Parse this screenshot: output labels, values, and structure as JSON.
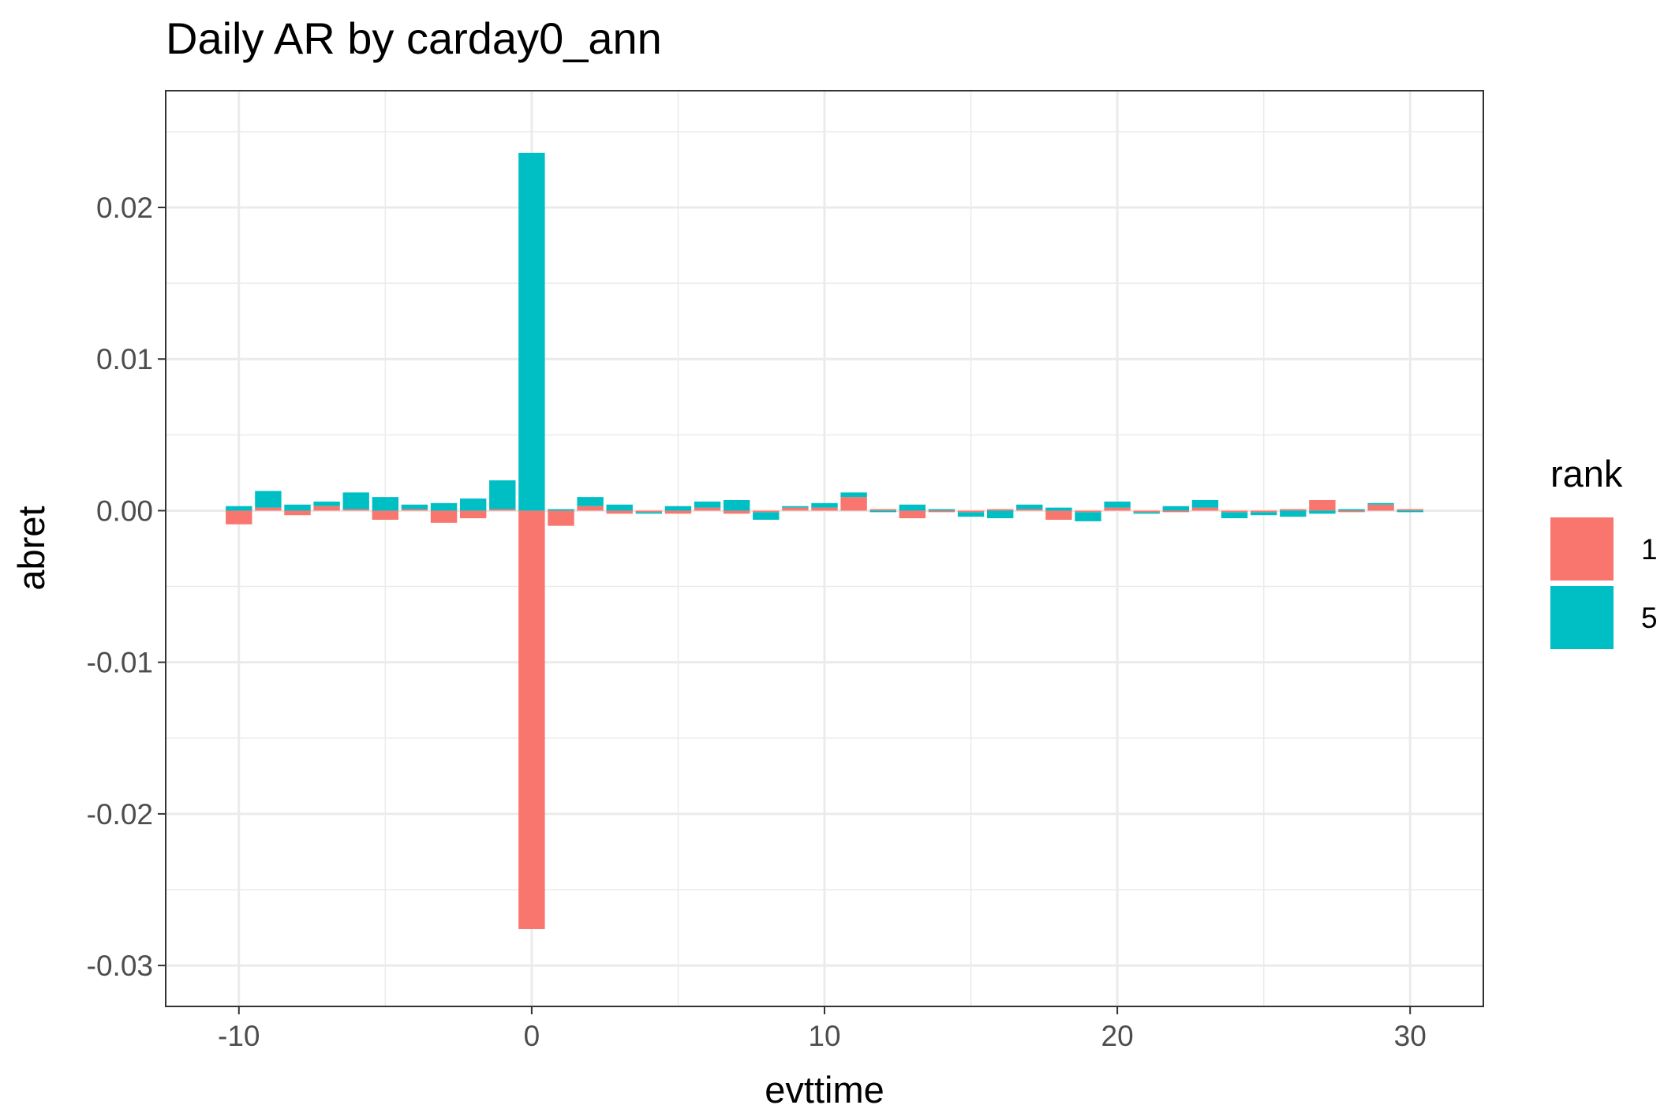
{
  "chart_data": {
    "type": "bar",
    "position": "stack",
    "title": "Daily AR by carday0_ann",
    "xlabel": "evttime",
    "ylabel": "abret",
    "xlim": [
      -12.5,
      32.5
    ],
    "ylim": [
      -0.0327,
      0.0277
    ],
    "x_ticks": [
      -10,
      0,
      10,
      20,
      30
    ],
    "x_tick_labels": [
      "-10",
      "0",
      "10",
      "20",
      "30"
    ],
    "y_ticks": [
      -0.03,
      -0.02,
      -0.01,
      0.0,
      0.01,
      0.02
    ],
    "y_tick_labels": [
      "-0.03",
      "-0.02",
      "-0.01",
      "0.00",
      "0.01",
      "0.02"
    ],
    "grid": true,
    "legend": {
      "title": "rank",
      "position": "right"
    },
    "x": [
      -10,
      -9,
      -8,
      -7,
      -6,
      -5,
      -4,
      -3,
      -2,
      -1,
      0,
      1,
      2,
      3,
      4,
      5,
      6,
      7,
      8,
      9,
      10,
      11,
      12,
      13,
      14,
      15,
      16,
      17,
      18,
      19,
      20,
      21,
      22,
      23,
      24,
      25,
      26,
      27,
      28,
      29,
      30
    ],
    "series": [
      {
        "name": "1",
        "color": "#F8766D",
        "values": [
          -0.0009,
          0.0002,
          -0.0003,
          0.0003,
          0.0001,
          -0.0006,
          0.0001,
          -0.0008,
          -0.0005,
          0.0001,
          -0.0276,
          -0.001,
          0.0003,
          -0.0002,
          -0.0001,
          -0.0002,
          0.0002,
          -0.0002,
          -0.0001,
          0.0002,
          0.0002,
          0.0009,
          0.0001,
          -0.0005,
          -0.0001,
          -0.0001,
          0.0001,
          0.0001,
          -0.0006,
          -0.0001,
          0.0002,
          -0.0001,
          -0.0001,
          0.0002,
          -0.0001,
          -0.0001,
          0.0001,
          0.0007,
          -0.0001,
          0.0004,
          0.0001
        ]
      },
      {
        "name": "5",
        "color": "#00BFC4",
        "values": [
          0.0003,
          0.0011,
          0.0004,
          0.0003,
          0.0011,
          0.0009,
          0.0003,
          0.0005,
          0.0008,
          0.0019,
          0.0236,
          0.0001,
          0.0006,
          0.0004,
          -0.0001,
          0.0003,
          0.0004,
          0.0007,
          -0.0005,
          0.0001,
          0.0003,
          0.0003,
          -0.0001,
          0.0004,
          0.0001,
          -0.0003,
          -0.0005,
          0.0003,
          0.0002,
          -0.0006,
          0.0004,
          -0.0001,
          0.0003,
          0.0005,
          -0.0004,
          -0.0002,
          -0.0004,
          -0.0002,
          0.0001,
          0.0001,
          -0.0001
        ]
      }
    ]
  }
}
